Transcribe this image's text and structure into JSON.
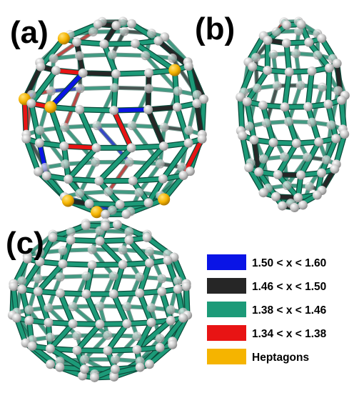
{
  "panels": [
    {
      "id": "a",
      "label": "(a)"
    },
    {
      "id": "b",
      "label": "(b)"
    },
    {
      "id": "c",
      "label": "(c)"
    }
  ],
  "legend": [
    {
      "label": "1.50 < x < 1.60",
      "color": "#0a14e6"
    },
    {
      "label": "1.46 < x < 1.50",
      "color": "#262626"
    },
    {
      "label": "1.38 < x < 1.46",
      "color": "#1c9a78"
    },
    {
      "label": "1.34 < x < 1.38",
      "color": "#e81414"
    },
    {
      "label": "Heptagons",
      "color": "#f5b400"
    }
  ],
  "colors": {
    "bond_default": "#1c9a78",
    "bond_long": "#262626",
    "bond_longest": "#0a14e6",
    "bond_short": "#e81414",
    "atom": "#c8c8c8",
    "heptagon_atom": "#f5b400"
  }
}
